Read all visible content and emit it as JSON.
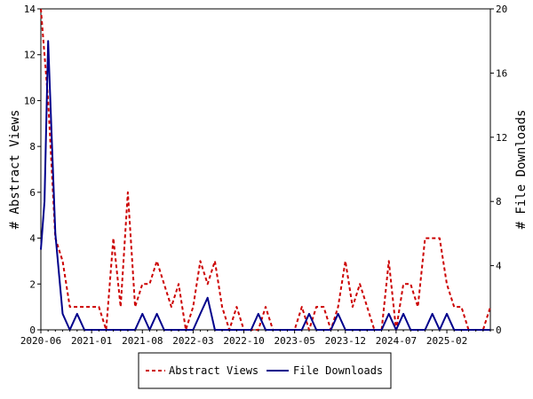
{
  "chart_data": {
    "type": "line",
    "grid": false,
    "legend_position": "bottom-center",
    "x_tick_labels": [
      "2020-06",
      "2021-01",
      "2021-08",
      "2022-03",
      "2022-10",
      "2023-05",
      "2023-12",
      "2024-07",
      "2025-02"
    ],
    "y_left": {
      "label": "# Abstract Views",
      "range": [
        0,
        14
      ],
      "ticks": [
        "0",
        "2",
        "4",
        "6",
        "8",
        "10",
        "12",
        "14"
      ]
    },
    "y_right": {
      "label": "# File Downloads",
      "range": [
        0,
        20
      ],
      "ticks": [
        "0",
        "4",
        "8",
        "12",
        "16",
        "20"
      ]
    },
    "series": [
      {
        "name": "Abstract Views",
        "axis": "left",
        "color": "#cc0000",
        "dash": "dashed",
        "points": [
          [
            0,
            14
          ],
          [
            1,
            10
          ],
          [
            2,
            4
          ],
          [
            3,
            3
          ],
          [
            4,
            1
          ],
          [
            5,
            1
          ],
          [
            6,
            1
          ],
          [
            7,
            1
          ],
          [
            8,
            1
          ],
          [
            9,
            0
          ],
          [
            10,
            4
          ],
          [
            11,
            1
          ],
          [
            12,
            6
          ],
          [
            13,
            1
          ],
          [
            14,
            2
          ],
          [
            15,
            2
          ],
          [
            16,
            3
          ],
          [
            17,
            2
          ],
          [
            18,
            1
          ],
          [
            19,
            2
          ],
          [
            20,
            0
          ],
          [
            21,
            1
          ],
          [
            22,
            3
          ],
          [
            23,
            2
          ],
          [
            24,
            3
          ],
          [
            25,
            1
          ],
          [
            26,
            0
          ],
          [
            27,
            1
          ],
          [
            28,
            0
          ],
          [
            29,
            0
          ],
          [
            30,
            0
          ],
          [
            31,
            1
          ],
          [
            32,
            0
          ],
          [
            33,
            0
          ],
          [
            34,
            0
          ],
          [
            35,
            0
          ],
          [
            36,
            1
          ],
          [
            37,
            0
          ],
          [
            38,
            1
          ],
          [
            39,
            1
          ],
          [
            40,
            0
          ],
          [
            41,
            1
          ],
          [
            42,
            3
          ],
          [
            43,
            1
          ],
          [
            44,
            2
          ],
          [
            45,
            1
          ],
          [
            46,
            0
          ],
          [
            47,
            0
          ],
          [
            48,
            3
          ],
          [
            49,
            0
          ],
          [
            50,
            2
          ],
          [
            51,
            2
          ],
          [
            52,
            1
          ],
          [
            53,
            4
          ],
          [
            54,
            4
          ],
          [
            55,
            4
          ],
          [
            56,
            2
          ],
          [
            57,
            1
          ],
          [
            58,
            1
          ],
          [
            59,
            0
          ],
          [
            60,
            0
          ],
          [
            61,
            0
          ],
          [
            62,
            1
          ]
        ]
      },
      {
        "name": "File Downloads",
        "axis": "right",
        "color": "#00008b",
        "dash": "solid",
        "points": [
          [
            0,
            5
          ],
          [
            0.5,
            8
          ],
          [
            1,
            18
          ],
          [
            1.5,
            12
          ],
          [
            2,
            6
          ],
          [
            3,
            1
          ],
          [
            4,
            0
          ],
          [
            5,
            1
          ],
          [
            6,
            0
          ],
          [
            7,
            0
          ],
          [
            8,
            0
          ],
          [
            9,
            0
          ],
          [
            10,
            0
          ],
          [
            11,
            0
          ],
          [
            12,
            0
          ],
          [
            13,
            0
          ],
          [
            14,
            1
          ],
          [
            15,
            0
          ],
          [
            16,
            1
          ],
          [
            17,
            0
          ],
          [
            18,
            0
          ],
          [
            19,
            0
          ],
          [
            20,
            0
          ],
          [
            21,
            0
          ],
          [
            22,
            1
          ],
          [
            23,
            2
          ],
          [
            24,
            0
          ],
          [
            25,
            0
          ],
          [
            26,
            0
          ],
          [
            27,
            0
          ],
          [
            28,
            0
          ],
          [
            29,
            0
          ],
          [
            30,
            1
          ],
          [
            31,
            0
          ],
          [
            32,
            0
          ],
          [
            33,
            0
          ],
          [
            34,
            0
          ],
          [
            35,
            0
          ],
          [
            36,
            0
          ],
          [
            37,
            1
          ],
          [
            38,
            0
          ],
          [
            39,
            0
          ],
          [
            40,
            0
          ],
          [
            41,
            1
          ],
          [
            42,
            0
          ],
          [
            43,
            0
          ],
          [
            44,
            0
          ],
          [
            45,
            0
          ],
          [
            46,
            0
          ],
          [
            47,
            0
          ],
          [
            48,
            1
          ],
          [
            49,
            0
          ],
          [
            50,
            1
          ],
          [
            51,
            0
          ],
          [
            52,
            0
          ],
          [
            53,
            0
          ],
          [
            54,
            1
          ],
          [
            55,
            0
          ],
          [
            56,
            1
          ],
          [
            57,
            0
          ],
          [
            58,
            0
          ],
          [
            59,
            0
          ],
          [
            60,
            0
          ],
          [
            61,
            0
          ],
          [
            62,
            0
          ]
        ]
      }
    ]
  }
}
